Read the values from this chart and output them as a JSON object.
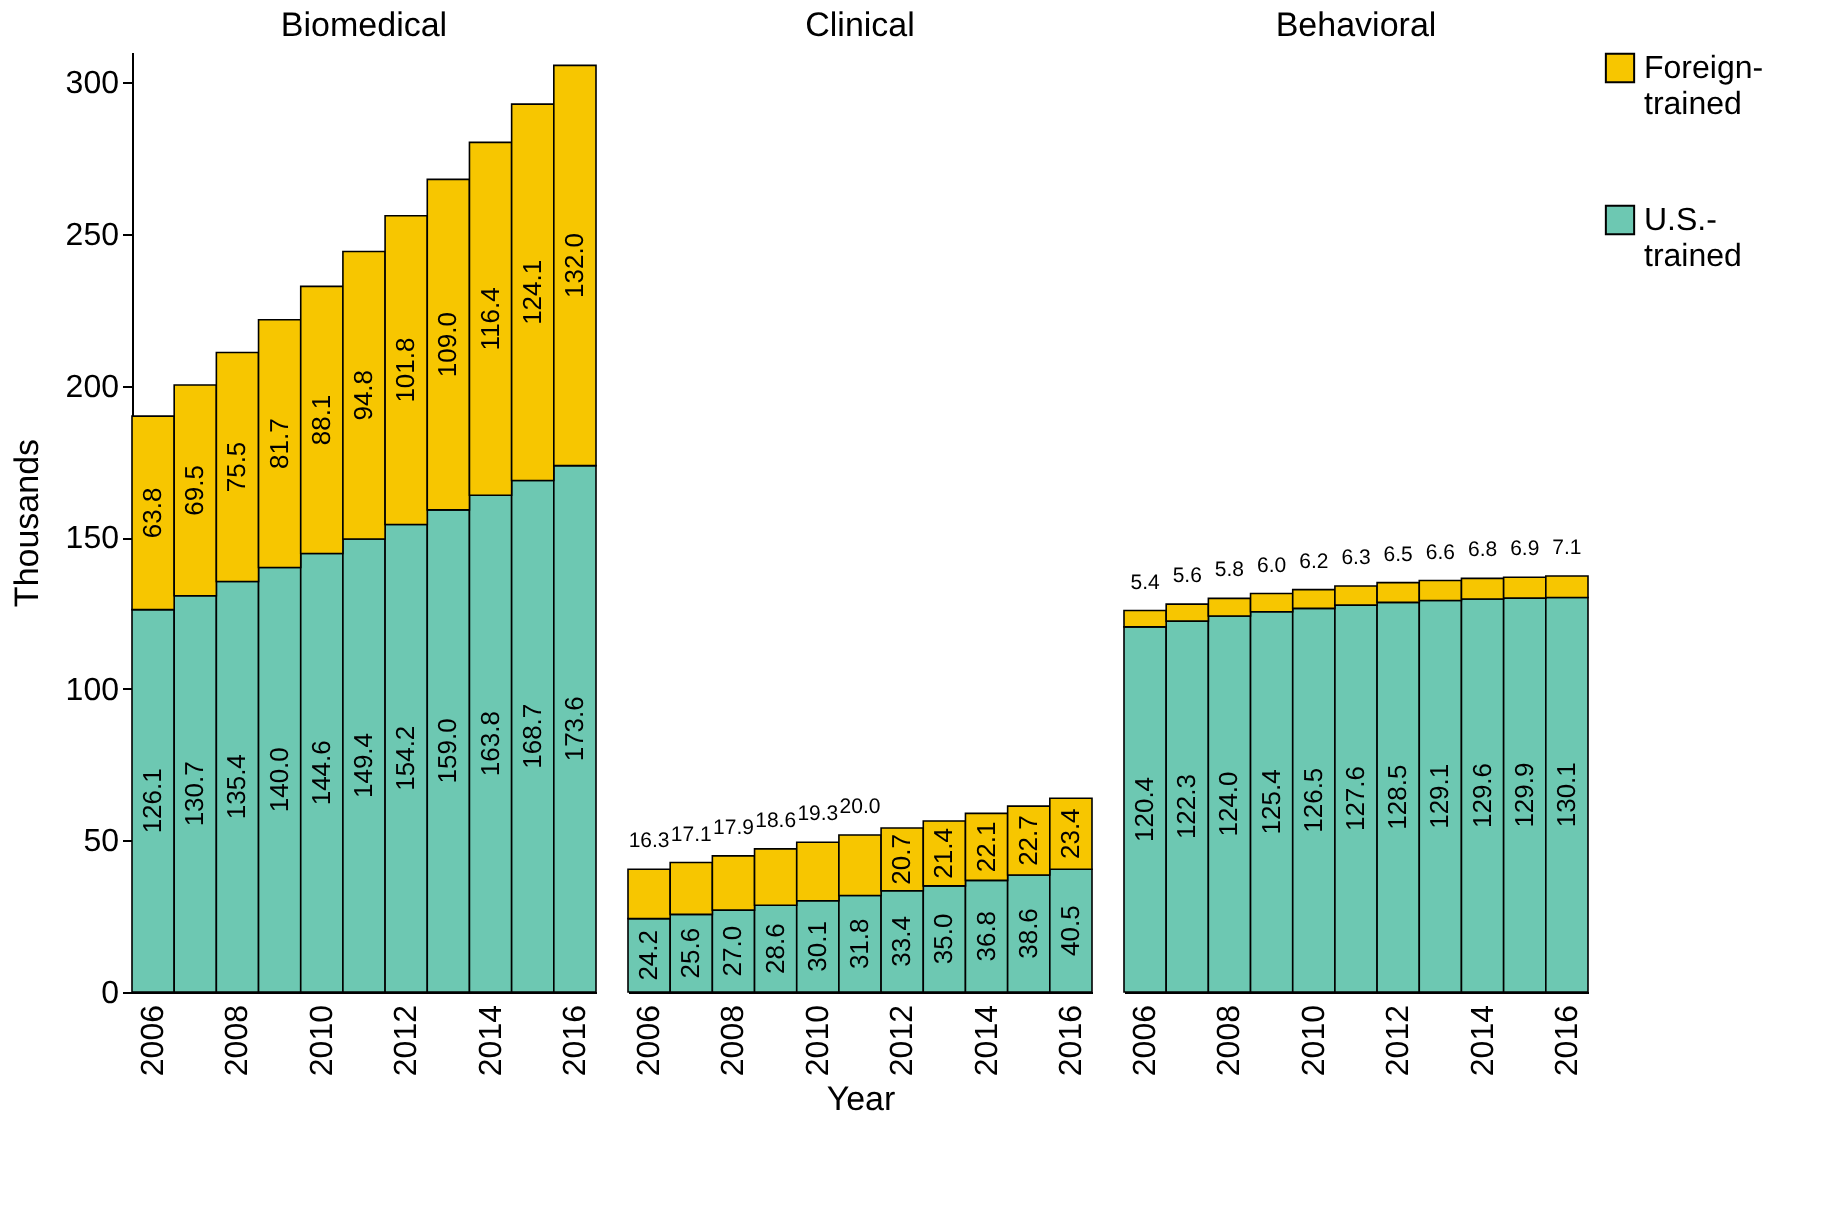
{
  "chart_data": [
    {
      "type": "bar",
      "title": "Biomedical",
      "ylabel": "Thousands",
      "stacked": true,
      "grid": false,
      "categories": [
        "2006",
        null,
        "2008",
        null,
        "2010",
        null,
        "2012",
        null,
        "2014",
        null,
        "2016"
      ],
      "ylim": [
        0,
        310
      ],
      "yticks": [
        0,
        50,
        100,
        150,
        200,
        250,
        300
      ],
      "series": [
        {
          "color": "#6dc8b2",
          "values": [
            126.1,
            130.7,
            135.4,
            140.0,
            144.6,
            149.4,
            154.2,
            159.0,
            163.8,
            168.7,
            173.6
          ],
          "value_labels": [
            "126.1",
            "130.7",
            "135.4",
            "140.0",
            "144.6",
            "149.4",
            "154.2",
            "159.0",
            "163.8",
            "168.7",
            "173.6"
          ]
        },
        {
          "color": "#f7c600",
          "values": [
            63.8,
            69.5,
            75.5,
            81.7,
            88.1,
            94.8,
            101.8,
            109.0,
            116.4,
            124.1,
            132.0
          ],
          "value_labels": [
            "63.8",
            "69.5",
            "75.5",
            "81.7",
            "88.1",
            "94.8",
            "101.8",
            "109.0",
            "116.4",
            "124.1",
            "132.0"
          ]
        }
      ]
    },
    {
      "type": "bar",
      "title": "Clinical",
      "xlabel": "Year",
      "stacked": true,
      "grid": false,
      "tick_labels": "x",
      "categories": [
        "2006",
        null,
        "2008",
        null,
        "2010",
        null,
        "2012",
        null,
        "2014",
        null,
        "2016"
      ],
      "series": [
        {
          "color": "#6dc8b2",
          "values": [
            24.2,
            25.6,
            27.0,
            28.6,
            30.1,
            31.8,
            33.4,
            35.0,
            36.8,
            38.6,
            40.5
          ],
          "value_labels": [
            "24.2",
            "25.6",
            "27.0",
            "28.6",
            "30.1",
            "31.8",
            "33.4",
            "35.0",
            "36.8",
            "38.6",
            "40.5"
          ]
        },
        {
          "color": "#f7c600",
          "values": [
            16.3,
            17.1,
            17.9,
            18.6,
            19.3,
            20.0,
            20.7,
            21.4,
            22.1,
            22.7,
            23.4
          ],
          "value_labels": [
            "16.3",
            "17.1",
            "17.9",
            "18.6",
            "19.3",
            "20.0",
            "20.7",
            "21.4",
            "22.1",
            "22.7",
            "23.4"
          ]
        }
      ]
    },
    {
      "type": "bar",
      "title": "Behavioral",
      "stacked": true,
      "grid": false,
      "tick_labels": "x",
      "legend": "right",
      "categories": [
        "2006",
        null,
        "2008",
        null,
        "2010",
        null,
        "2012",
        null,
        "2014",
        null,
        "2016"
      ],
      "series": [
        {
          "name": "U.S.-trained",
          "color": "#6dc8b2",
          "values": [
            120.4,
            122.3,
            124.0,
            125.4,
            126.5,
            127.6,
            128.5,
            129.1,
            129.6,
            129.9,
            130.1
          ],
          "value_labels": [
            "120.4",
            "122.3",
            "124.0",
            "125.4",
            "126.5",
            "127.6",
            "128.5",
            "129.1",
            "129.6",
            "129.9",
            "130.1"
          ]
        },
        {
          "name": "Foreign-trained",
          "color": "#f7c600",
          "values": [
            5.4,
            5.6,
            5.8,
            6.0,
            6.2,
            6.3,
            6.5,
            6.6,
            6.8,
            6.9,
            7.1
          ],
          "value_labels": [
            "5.4",
            "5.6",
            "5.8",
            "6.0",
            "6.2",
            "6.3",
            "6.5",
            "6.6",
            "6.8",
            "6.9",
            "7.1"
          ]
        }
      ]
    }
  ]
}
